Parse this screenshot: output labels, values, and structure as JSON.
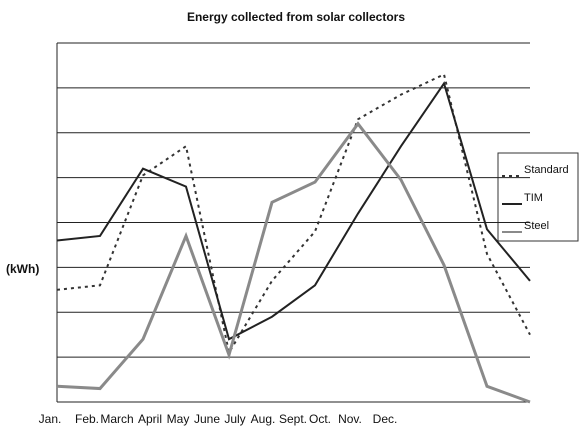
{
  "chart_data": {
    "type": "line",
    "title": "Energy collected from solar collectors",
    "y_label": "(kWh)",
    "categories": [
      "Jan.",
      "Feb.",
      "March",
      "April",
      "May",
      "June",
      "July",
      "Aug.",
      "Sept.",
      "Oct.",
      "Nov.",
      "Dec."
    ],
    "series": [
      {
        "name": "Standard",
        "color": "#333333",
        "dash": "dotted",
        "values": [
          2.5,
          2.6,
          5.05,
          5.7,
          1.1,
          2.7,
          3.8,
          6.3,
          6.85,
          7.3,
          3.3,
          1.5
        ]
      },
      {
        "name": "TIM",
        "color": "#222222",
        "dash": "solid",
        "values": [
          3.6,
          3.7,
          5.2,
          4.8,
          1.4,
          1.9,
          2.6,
          4.2,
          5.7,
          7.1,
          3.85,
          2.7
        ]
      },
      {
        "name": "Steel",
        "color": "#8a8a8a",
        "dash": "solid",
        "values": [
          0.35,
          0.3,
          1.4,
          3.7,
          1.05,
          4.45,
          4.9,
          6.2,
          4.95,
          3.05,
          0.35,
          0
        ]
      }
    ],
    "ylim": [
      0,
      8
    ],
    "yticks": [
      0,
      1,
      2,
      3,
      4,
      5,
      6,
      7,
      8
    ],
    "grid": true,
    "legend": "right"
  }
}
